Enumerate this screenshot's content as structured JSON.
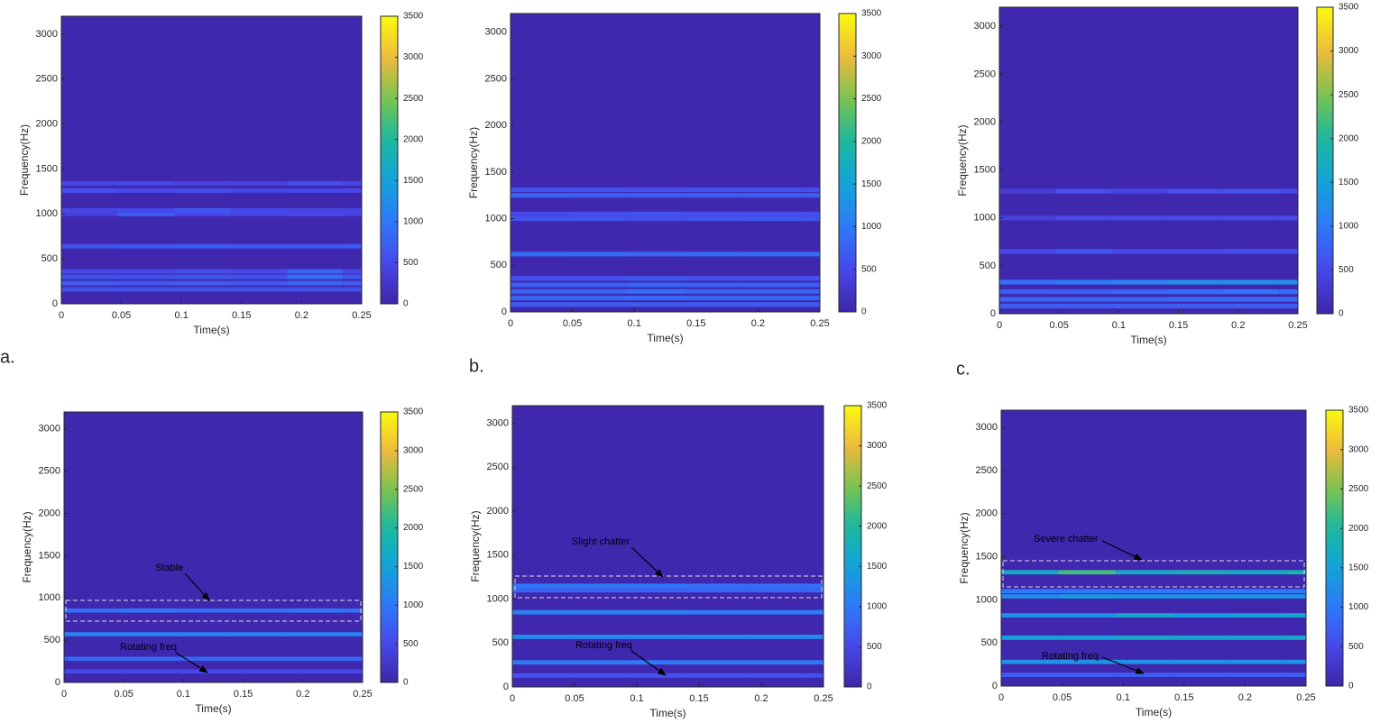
{
  "chart_data": [
    {
      "type": "heatmap",
      "panel_label": "a.",
      "xlabel": "Time(s)",
      "ylabel": "Frequency(Hz)",
      "colormap": "parula",
      "xlim": [
        0,
        0.25
      ],
      "xticks": [
        0,
        0.05,
        0.1,
        0.15,
        0.2,
        0.25
      ],
      "ylim": [
        0,
        3200
      ],
      "yticks": [
        0,
        500,
        1000,
        1500,
        2000,
        2500,
        3000
      ],
      "clim": [
        0,
        3500
      ],
      "cticks": [
        0,
        500,
        1000,
        1500,
        2000,
        2500,
        3000,
        3500
      ],
      "x": [
        0,
        0.047,
        0.094,
        0.141,
        0.188,
        0.234,
        0.25
      ],
      "rows": [
        {
          "y": 160,
          "values": [
            600,
            600,
            600,
            600,
            600,
            600
          ]
        },
        {
          "y": 230,
          "values": [
            700,
            650,
            700,
            650,
            800,
            700
          ]
        },
        {
          "y": 300,
          "values": [
            600,
            600,
            650,
            600,
            900,
            650
          ]
        },
        {
          "y": 360,
          "values": [
            500,
            500,
            550,
            500,
            800,
            500
          ]
        },
        {
          "y": 640,
          "values": [
            600,
            650,
            700,
            650,
            650,
            700
          ]
        },
        {
          "y": 1000,
          "values": [
            400,
            700,
            500,
            450,
            500,
            450
          ]
        },
        {
          "y": 1040,
          "values": [
            450,
            500,
            650,
            500,
            450,
            450
          ]
        },
        {
          "y": 1260,
          "values": [
            550,
            500,
            550,
            450,
            500,
            500
          ]
        },
        {
          "y": 1340,
          "values": [
            450,
            500,
            400,
            400,
            550,
            450
          ]
        }
      ]
    },
    {
      "type": "heatmap",
      "panel_label": "b.",
      "xlabel": "Time(s)",
      "ylabel": "Frequency(Hz)",
      "colormap": "parula",
      "xlim": [
        0,
        0.25
      ],
      "xticks": [
        0,
        0.05,
        0.1,
        0.15,
        0.2,
        0.25
      ],
      "ylim": [
        0,
        3200
      ],
      "yticks": [
        0,
        500,
        1000,
        1500,
        2000,
        2500,
        3000
      ],
      "clim": [
        0,
        3500
      ],
      "cticks": [
        0,
        500,
        1000,
        1500,
        2000,
        2500,
        3000,
        3500
      ],
      "x": [
        0,
        0.047,
        0.094,
        0.141,
        0.188,
        0.234,
        0.25
      ],
      "rows": [
        {
          "y": 80,
          "values": [
            700,
            700,
            700,
            700,
            700,
            700
          ]
        },
        {
          "y": 150,
          "values": [
            800,
            800,
            850,
            800,
            800,
            800
          ]
        },
        {
          "y": 220,
          "values": [
            800,
            800,
            900,
            800,
            800,
            800
          ]
        },
        {
          "y": 290,
          "values": [
            700,
            700,
            800,
            750,
            750,
            700
          ]
        },
        {
          "y": 360,
          "values": [
            600,
            600,
            650,
            600,
            600,
            600
          ]
        },
        {
          "y": 620,
          "values": [
            900,
            850,
            800,
            850,
            850,
            850
          ]
        },
        {
          "y": 1000,
          "values": [
            600,
            600,
            550,
            600,
            650,
            600
          ]
        },
        {
          "y": 1050,
          "values": [
            500,
            550,
            600,
            550,
            550,
            550
          ]
        },
        {
          "y": 1250,
          "values": [
            750,
            700,
            700,
            700,
            700,
            700
          ]
        },
        {
          "y": 1310,
          "values": [
            600,
            600,
            550,
            600,
            600,
            550
          ]
        }
      ]
    },
    {
      "type": "heatmap",
      "panel_label": "c.",
      "xlabel": "Time(s)",
      "ylabel": "Frequency(Hz)",
      "colormap": "parula",
      "xlim": [
        0,
        0.25
      ],
      "xticks": [
        0,
        0.05,
        0.1,
        0.15,
        0.2,
        0.25
      ],
      "ylim": [
        0,
        3200
      ],
      "yticks": [
        0,
        500,
        1000,
        1500,
        2000,
        2500,
        3000
      ],
      "clim": [
        0,
        3500
      ],
      "cticks": [
        0,
        500,
        1000,
        1500,
        2000,
        2500,
        3000,
        3500
      ],
      "x": [
        0,
        0.047,
        0.094,
        0.141,
        0.188,
        0.234,
        0.25
      ],
      "rows": [
        {
          "y": 80,
          "values": [
            700,
            700,
            700,
            700,
            700,
            700
          ]
        },
        {
          "y": 150,
          "values": [
            800,
            800,
            800,
            850,
            850,
            850
          ]
        },
        {
          "y": 230,
          "values": [
            700,
            750,
            800,
            900,
            950,
            900
          ]
        },
        {
          "y": 330,
          "values": [
            900,
            1000,
            1100,
            1250,
            1250,
            1250
          ]
        },
        {
          "y": 650,
          "values": [
            500,
            650,
            500,
            500,
            550,
            550
          ]
        },
        {
          "y": 1000,
          "values": [
            400,
            500,
            500,
            500,
            500,
            500
          ]
        },
        {
          "y": 1280,
          "values": [
            350,
            550,
            450,
            550,
            600,
            500
          ]
        }
      ]
    },
    {
      "type": "heatmap",
      "xlabel": "Time(s)",
      "ylabel": "Frequency(Hz)",
      "colormap": "parula",
      "xlim": [
        0,
        0.25
      ],
      "xticks": [
        0,
        0.05,
        0.1,
        0.15,
        0.2,
        0.25
      ],
      "ylim": [
        0,
        3200
      ],
      "yticks": [
        0,
        500,
        1000,
        1500,
        2000,
        2500,
        3000
      ],
      "clim": [
        0,
        3500
      ],
      "cticks": [
        0,
        500,
        1000,
        1500,
        2000,
        2500,
        3000,
        3500
      ],
      "x": [
        0,
        0.047,
        0.094,
        0.141,
        0.188,
        0.234,
        0.25
      ],
      "rows": [
        {
          "y": 130,
          "values": [
            500,
            500,
            500,
            500,
            500,
            500
          ]
        },
        {
          "y": 280,
          "values": [
            800,
            800,
            800,
            800,
            800,
            800
          ]
        },
        {
          "y": 570,
          "values": [
            1100,
            1100,
            1100,
            1100,
            1100,
            1100
          ]
        },
        {
          "y": 850,
          "values": [
            900,
            950,
            900,
            900,
            950,
            900
          ]
        }
      ],
      "annotations": [
        "Stable",
        "Rotating freq"
      ]
    },
    {
      "type": "heatmap",
      "xlabel": "Time(s)",
      "ylabel": "Frequency(Hz)",
      "colormap": "parula",
      "xlim": [
        0,
        0.25
      ],
      "xticks": [
        0,
        0.05,
        0.1,
        0.15,
        0.2,
        0.25
      ],
      "ylim": [
        0,
        3200
      ],
      "yticks": [
        0,
        500,
        1000,
        1500,
        2000,
        2500,
        3000
      ],
      "clim": [
        0,
        3500
      ],
      "cticks": [
        0,
        500,
        1000,
        1500,
        2000,
        2500,
        3000,
        3500
      ],
      "x": [
        0,
        0.047,
        0.094,
        0.141,
        0.188,
        0.234,
        0.25
      ],
      "rows": [
        {
          "y": 130,
          "values": [
            600,
            600,
            600,
            600,
            600,
            600
          ]
        },
        {
          "y": 280,
          "values": [
            1000,
            1000,
            1000,
            1000,
            1000,
            1000
          ]
        },
        {
          "y": 570,
          "values": [
            1200,
            1200,
            1200,
            1200,
            1200,
            1200
          ]
        },
        {
          "y": 850,
          "values": [
            1100,
            1100,
            1100,
            1050,
            1050,
            1050
          ]
        },
        {
          "y": 1100,
          "values": [
            800,
            800,
            800,
            800,
            800,
            800
          ]
        },
        {
          "y": 1150,
          "values": [
            1000,
            1000,
            1000,
            900,
            900,
            900
          ]
        }
      ],
      "annotations": [
        "Slight chatter",
        "Rotating freq"
      ]
    },
    {
      "type": "heatmap",
      "xlabel": "Time(s)",
      "ylabel": "Frequency(Hz)",
      "colormap": "parula",
      "xlim": [
        0,
        0.25
      ],
      "xticks": [
        0,
        0.05,
        0.1,
        0.15,
        0.2,
        0.25
      ],
      "ylim": [
        0,
        3200
      ],
      "yticks": [
        0,
        500,
        1000,
        1500,
        2000,
        2500,
        3000
      ],
      "clim": [
        0,
        3500
      ],
      "cticks": [
        0,
        500,
        1000,
        1500,
        2000,
        2500,
        3000,
        3500
      ],
      "x": [
        0,
        0.047,
        0.094,
        0.141,
        0.188,
        0.234,
        0.25
      ],
      "rows": [
        {
          "y": 130,
          "values": [
            700,
            700,
            700,
            700,
            700,
            700
          ]
        },
        {
          "y": 280,
          "values": [
            1300,
            1300,
            1300,
            1300,
            1300,
            1300
          ]
        },
        {
          "y": 560,
          "values": [
            1500,
            1500,
            1700,
            1600,
            1600,
            1700
          ]
        },
        {
          "y": 820,
          "values": [
            1300,
            1300,
            1600,
            1400,
            1500,
            1600
          ]
        },
        {
          "y": 1040,
          "values": [
            1200,
            1400,
            1300,
            1300,
            1300,
            1300
          ]
        },
        {
          "y": 1100,
          "values": [
            1000,
            1000,
            1000,
            1000,
            1000,
            1000
          ]
        },
        {
          "y": 1320,
          "values": [
            1700,
            2200,
            1700,
            1800,
            1700,
            1900
          ]
        }
      ],
      "annotations": [
        "Severe chatter",
        "Rotating freq"
      ]
    }
  ]
}
